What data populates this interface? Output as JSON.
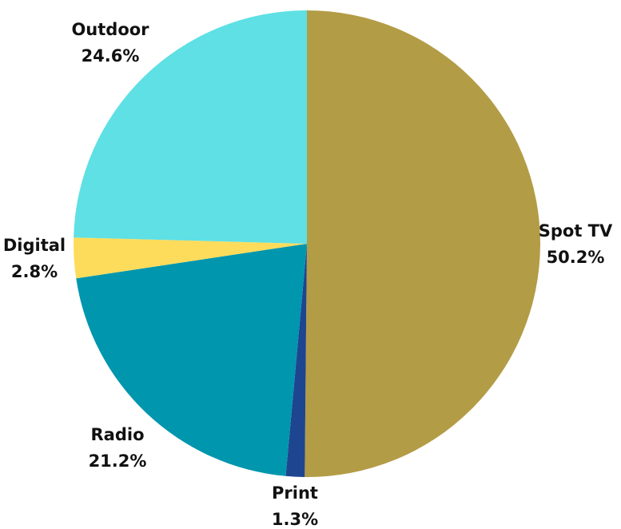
{
  "chart_data": {
    "type": "pie",
    "title": "",
    "slices": [
      {
        "label": "Spot TV",
        "value": 50.2,
        "display": "50.2%",
        "color": "#B39C46"
      },
      {
        "label": "Print",
        "value": 1.3,
        "display": "1.3%",
        "color": "#1E4590"
      },
      {
        "label": "Radio",
        "value": 21.2,
        "display": "21.2%",
        "color": "#0096AE"
      },
      {
        "label": "Digital",
        "value": 2.8,
        "display": "2.8%",
        "color": "#FDDC5C"
      },
      {
        "label": "Outdoor",
        "value": 24.6,
        "display": "24.6%",
        "color": "#5EE0E5"
      }
    ],
    "start_angle": "12 o'clock",
    "direction": "clockwise",
    "legend": "none"
  }
}
